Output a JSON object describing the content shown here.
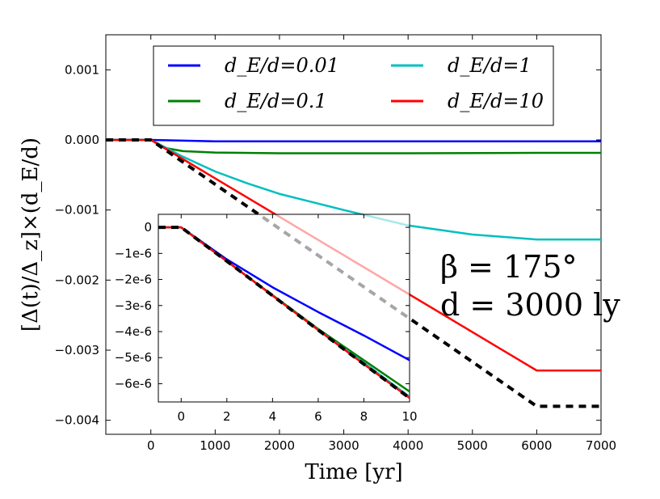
{
  "chart_data": {
    "type": "line",
    "title": "",
    "xlabel": "Time [yr]",
    "ylabel": "[Δ(t)/Δ_z]×(d_E/d)",
    "xlim": [
      -700,
      7000
    ],
    "ylim": [
      -0.0042,
      0.0015
    ],
    "xticks": [
      0,
      1000,
      2000,
      3000,
      4000,
      5000,
      6000,
      7000
    ],
    "xtick_labels": [
      "0",
      "1000",
      "2000",
      "3000",
      "4000",
      "5000",
      "6000",
      "7000"
    ],
    "yticks": [
      0.001,
      0.0,
      -0.001,
      -0.002,
      -0.003,
      -0.004
    ],
    "ytick_labels": [
      "0.001",
      "0.000",
      "−0.001",
      "−0.002",
      "−0.003",
      "−0.004"
    ],
    "legend_position": "top",
    "series": [
      {
        "name": "d_E/d=0.01",
        "legend_label": "d_E/d=0.01",
        "color": "#0000ff",
        "x": [
          -700,
          0,
          1000,
          3000,
          6000,
          7000
        ],
        "y": [
          0,
          0,
          -2e-05,
          -2e-05,
          -2e-05,
          -2e-05
        ]
      },
      {
        "name": "d_E/d=0.1",
        "legend_label": "d_E/d=0.1",
        "color": "#008000",
        "x": [
          -700,
          0,
          250,
          500,
          1000,
          2000,
          4000,
          6000,
          7000
        ],
        "y": [
          0,
          0,
          -0.00012,
          -0.00016,
          -0.00018,
          -0.00019,
          -0.00019,
          -0.000185,
          -0.000185
        ]
      },
      {
        "name": "d_E/d=1",
        "legend_label": "d_E/d=1",
        "color": "#00bfbf",
        "x": [
          -700,
          0,
          500,
          1000,
          1500,
          2000,
          3000,
          4000,
          5000,
          6000,
          7000
        ],
        "y": [
          0,
          0,
          -0.00024,
          -0.00045,
          -0.00062,
          -0.00077,
          -0.001,
          -0.00122,
          -0.00135,
          -0.00142,
          -0.00142
        ]
      },
      {
        "name": "d_E/d=10",
        "legend_label": "d_E/d=10",
        "color": "#ff0000",
        "x": [
          -700,
          0,
          6000,
          7000
        ],
        "y": [
          0,
          0,
          -0.00329,
          -0.00329
        ]
      },
      {
        "name": "reference",
        "legend_label": "",
        "color": "#000000",
        "style": "dashed",
        "x": [
          -700,
          0,
          6000,
          7000
        ],
        "y": [
          0,
          0,
          -0.0038,
          -0.0038
        ]
      }
    ],
    "annotations": [
      "β = 175°",
      "d = 3000 ly"
    ],
    "inset": {
      "xlim": [
        -1,
        10
      ],
      "ylim": [
        -6.7e-06,
        5e-07
      ],
      "xticks": [
        0,
        2,
        4,
        6,
        8,
        10
      ],
      "xtick_labels": [
        "0",
        "2",
        "4",
        "6",
        "8",
        "10"
      ],
      "yticks": [
        0,
        -1e-06,
        -2e-06,
        -3e-06,
        -4e-06,
        -5e-06,
        -6e-06
      ],
      "ytick_labels": [
        "0",
        "−1e-6",
        "−2e-6",
        "−3e-6",
        "−4e-6",
        "−5e-6",
        "−6e-6"
      ],
      "series": [
        {
          "name": "d_E/d=0.01",
          "color": "#0000ff",
          "x": [
            -1,
            0,
            2,
            4,
            6,
            8,
            10
          ],
          "y": [
            0,
            0,
            -1.23e-06,
            -2.3e-06,
            -3.25e-06,
            -4.15e-06,
            -5.1e-06
          ]
        },
        {
          "name": "d_E/d=0.1",
          "color": "#008000",
          "x": [
            -1,
            0,
            2,
            4,
            6,
            8,
            10
          ],
          "y": [
            0,
            0,
            -1.3e-06,
            -2.6e-06,
            -3.9e-06,
            -5.1e-06,
            -6.3e-06
          ]
        },
        {
          "name": "d_E/d=1",
          "color": "#00bfbf",
          "x": [
            -1,
            0,
            2,
            4,
            6,
            8,
            10
          ],
          "y": [
            0,
            0,
            -1.3e-06,
            -2.62e-06,
            -3.93e-06,
            -5.2e-06,
            -6.5e-06
          ]
        },
        {
          "name": "d_E/d=10",
          "color": "#ff0000",
          "x": [
            -1,
            0,
            2,
            4,
            6,
            8,
            10
          ],
          "y": [
            0,
            0,
            -1.3e-06,
            -2.62e-06,
            -3.94e-06,
            -5.25e-06,
            -6.55e-06
          ]
        },
        {
          "name": "reference",
          "color": "#000000",
          "style": "dashed",
          "x": [
            -1,
            0,
            2,
            4,
            6,
            8,
            10
          ],
          "y": [
            0,
            0,
            -1.3e-06,
            -2.62e-06,
            -3.94e-06,
            -5.25e-06,
            -6.55e-06
          ]
        }
      ]
    }
  }
}
